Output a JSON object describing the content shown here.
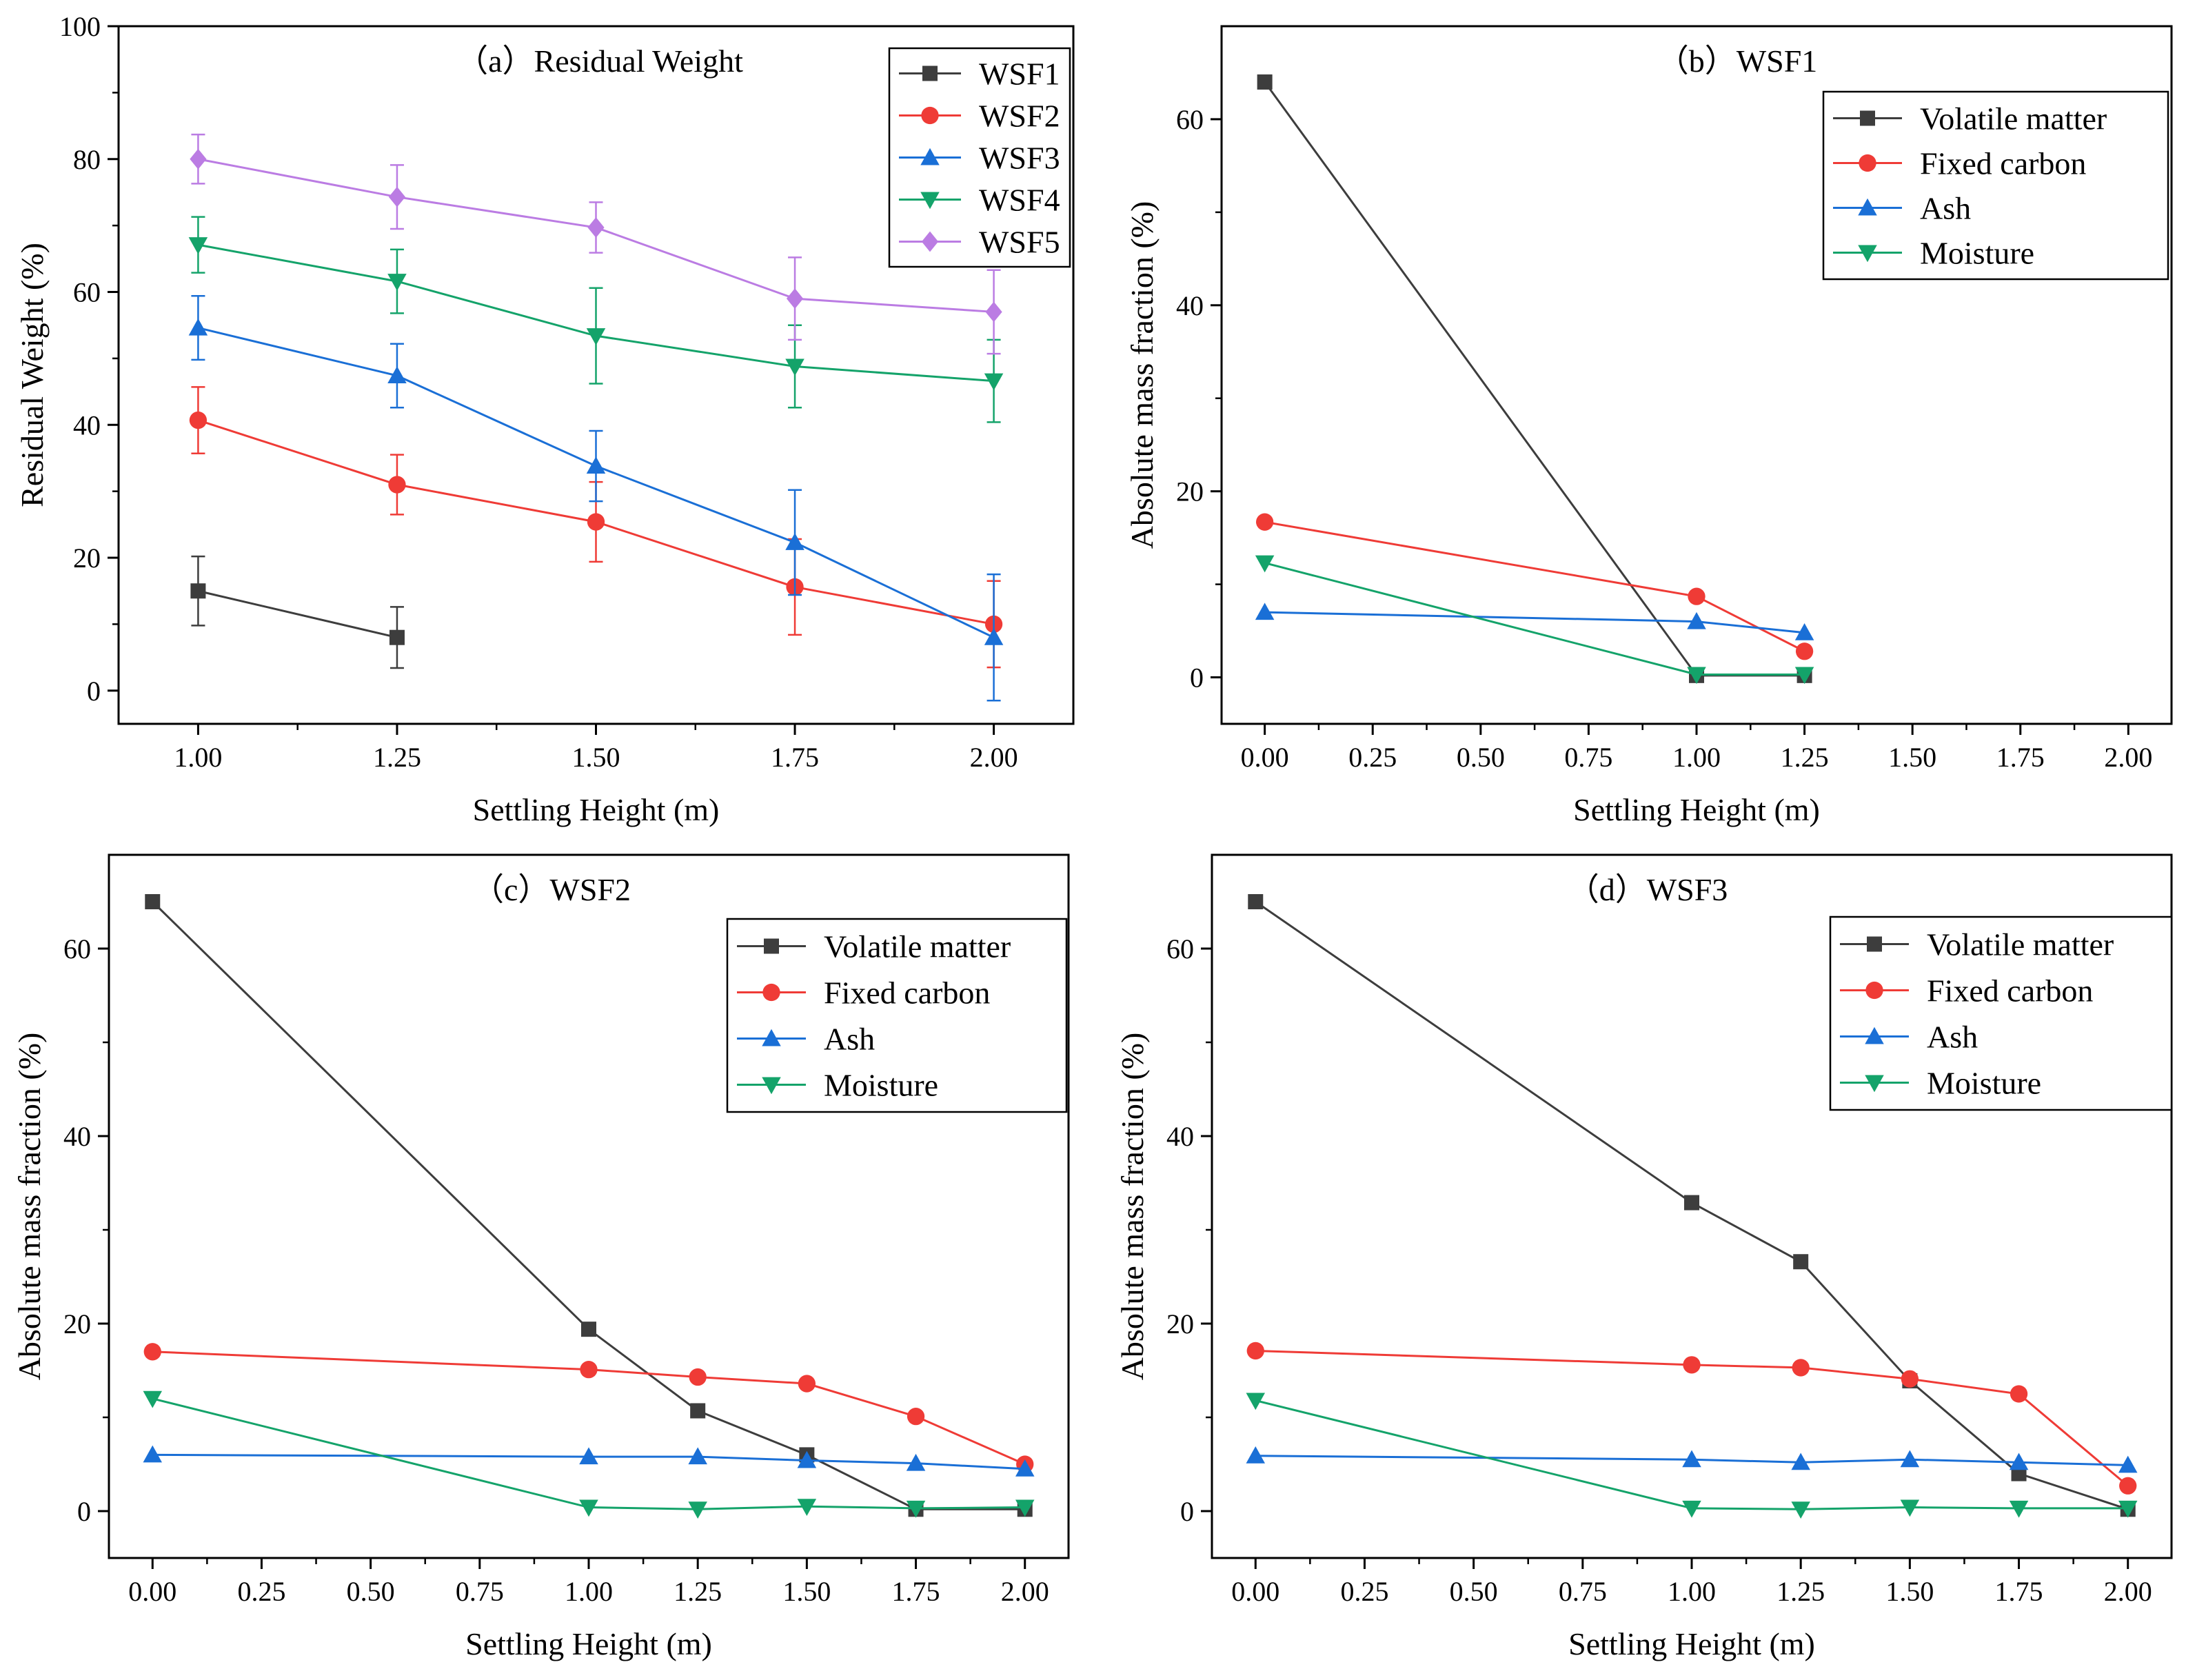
{
  "colors": {
    "black": "#3d3d3d",
    "red": "#ef3b36",
    "blue": "#1a6fd6",
    "green": "#14a36a",
    "purple": "#bb7ce3"
  },
  "chart_data": [
    {
      "type": "line",
      "panel": "a",
      "title": "（a）Residual Weight",
      "xlabel": "Settling Height (m)",
      "ylabel": "Residual Weight (%)",
      "xlim": [
        0.9,
        2.1
      ],
      "ylim": [
        -5,
        100
      ],
      "xticks": [
        1.0,
        1.25,
        1.5,
        1.75,
        2.0
      ],
      "xtick_labels": [
        "1.00",
        "1.25",
        "1.50",
        "1.75",
        "2.00"
      ],
      "yticks": [
        0,
        20,
        40,
        60,
        80,
        100
      ],
      "ytick_labels": [
        "0",
        "20",
        "40",
        "60",
        "80",
        "100"
      ],
      "legend_position": "top-right",
      "series": [
        {
          "name": "WSF1",
          "color": "#3d3d3d",
          "marker": "square",
          "x": [
            1.0,
            1.25
          ],
          "y": [
            15,
            8
          ],
          "err": [
            5.2,
            4.6
          ]
        },
        {
          "name": "WSF2",
          "color": "#ef3b36",
          "marker": "circle",
          "x": [
            1.0,
            1.25,
            1.5,
            1.75,
            2.0
          ],
          "y": [
            40.7,
            31,
            25.4,
            15.6,
            10
          ],
          "err": [
            5,
            4.5,
            6,
            7.2,
            6.5
          ]
        },
        {
          "name": "WSF3",
          "color": "#1a6fd6",
          "marker": "triangle-up",
          "x": [
            1.0,
            1.25,
            1.5,
            1.75,
            2.0
          ],
          "y": [
            54.6,
            47.4,
            33.8,
            22.3,
            8
          ],
          "err": [
            4.8,
            4.8,
            5.3,
            7.9,
            9.5
          ]
        },
        {
          "name": "WSF4",
          "color": "#14a36a",
          "marker": "triangle-down",
          "x": [
            1.0,
            1.25,
            1.5,
            1.75,
            2.0
          ],
          "y": [
            67.1,
            61.6,
            53.4,
            48.8,
            46.6
          ],
          "err": [
            4.2,
            4.8,
            7.2,
            6.2,
            6.2
          ]
        },
        {
          "name": "WSF5",
          "color": "#bb7ce3",
          "marker": "diamond",
          "x": [
            1.0,
            1.25,
            1.5,
            1.75,
            2.0
          ],
          "y": [
            80,
            74.3,
            69.7,
            59,
            57
          ],
          "err": [
            3.7,
            4.8,
            3.8,
            6.2,
            6.3
          ]
        }
      ]
    },
    {
      "type": "line",
      "panel": "b",
      "title": "（b）WSF1",
      "xlabel": "Settling Height (m)",
      "ylabel": "Absolute mass fraction (%)",
      "xlim": [
        -0.1,
        2.1
      ],
      "ylim": [
        -5,
        70
      ],
      "xticks": [
        0,
        0.25,
        0.5,
        0.75,
        1.0,
        1.25,
        1.5,
        1.75,
        2.0
      ],
      "xtick_labels": [
        "0.00",
        "0.25",
        "0.50",
        "0.75",
        "1.00",
        "1.25",
        "1.50",
        "1.75",
        "2.00"
      ],
      "yticks": [
        0,
        20,
        40,
        60
      ],
      "ytick_labels": [
        "0",
        "20",
        "40",
        "60"
      ],
      "legend_position": "top-right",
      "series": [
        {
          "name": "Volatile matter",
          "color": "#3d3d3d",
          "marker": "square",
          "x": [
            0,
            1.0,
            1.25
          ],
          "y": [
            64,
            0.2,
            0.2
          ]
        },
        {
          "name": "Fixed carbon",
          "color": "#ef3b36",
          "marker": "circle",
          "x": [
            0,
            1.0,
            1.25
          ],
          "y": [
            16.7,
            8.7,
            2.8
          ]
        },
        {
          "name": "Ash",
          "color": "#1a6fd6",
          "marker": "triangle-up",
          "x": [
            0,
            1.0,
            1.25
          ],
          "y": [
            7,
            6,
            4.8
          ]
        },
        {
          "name": "Moisture",
          "color": "#14a36a",
          "marker": "triangle-down",
          "x": [
            0,
            1.0,
            1.25
          ],
          "y": [
            12.3,
            0.3,
            0.3
          ]
        }
      ]
    },
    {
      "type": "line",
      "panel": "c",
      "title": "（c）WSF2",
      "xlabel": "Settling Height (m)",
      "ylabel": "Absolute mass fraction (%)",
      "xlim": [
        -0.1,
        2.1
      ],
      "ylim": [
        -5,
        70
      ],
      "xticks": [
        0,
        0.25,
        0.5,
        0.75,
        1.0,
        1.25,
        1.5,
        1.75,
        2.0
      ],
      "xtick_labels": [
        "0.00",
        "0.25",
        "0.50",
        "0.75",
        "1.00",
        "1.25",
        "1.50",
        "1.75",
        "2.00"
      ],
      "yticks": [
        0,
        20,
        40,
        60
      ],
      "ytick_labels": [
        "0",
        "20",
        "40",
        "60"
      ],
      "legend_position": "top-right",
      "series": [
        {
          "name": "Volatile matter",
          "color": "#3d3d3d",
          "marker": "square",
          "x": [
            0,
            1.0,
            1.25,
            1.5,
            1.75,
            2.0
          ],
          "y": [
            65,
            19.4,
            10.7,
            6,
            0.2,
            0.2
          ]
        },
        {
          "name": "Fixed carbon",
          "color": "#ef3b36",
          "marker": "circle",
          "x": [
            0,
            1.0,
            1.25,
            1.5,
            1.75,
            2.0
          ],
          "y": [
            17,
            15.1,
            14.3,
            13.6,
            10.1,
            5
          ]
        },
        {
          "name": "Ash",
          "color": "#1a6fd6",
          "marker": "triangle-up",
          "x": [
            0,
            1.0,
            1.25,
            1.5,
            1.75,
            2.0
          ],
          "y": [
            6,
            5.8,
            5.8,
            5.4,
            5.1,
            4.5
          ]
        },
        {
          "name": "Moisture",
          "color": "#14a36a",
          "marker": "triangle-down",
          "x": [
            0,
            1.0,
            1.25,
            1.5,
            1.75,
            2.0
          ],
          "y": [
            12,
            0.4,
            0.2,
            0.5,
            0.3,
            0.4
          ]
        }
      ]
    },
    {
      "type": "line",
      "panel": "d",
      "title": "（d）WSF3",
      "xlabel": "Settling Height (m)",
      "ylabel": "Absolute mass fraction (%)",
      "xlim": [
        -0.1,
        2.1
      ],
      "ylim": [
        -5,
        70
      ],
      "xticks": [
        0,
        0.25,
        0.5,
        0.75,
        1.0,
        1.25,
        1.5,
        1.75,
        2.0
      ],
      "xtick_labels": [
        "0.00",
        "0.25",
        "0.50",
        "0.75",
        "1.00",
        "1.25",
        "1.50",
        "1.75",
        "2.00"
      ],
      "yticks": [
        0,
        20,
        40,
        60
      ],
      "ytick_labels": [
        "0",
        "20",
        "40",
        "60"
      ],
      "legend_position": "top-right",
      "series": [
        {
          "name": "Volatile matter",
          "color": "#3d3d3d",
          "marker": "square",
          "x": [
            0,
            1.0,
            1.25,
            1.5,
            1.75,
            2.0
          ],
          "y": [
            65,
            32.9,
            26.6,
            13.9,
            4,
            0.2
          ]
        },
        {
          "name": "Fixed carbon",
          "color": "#ef3b36",
          "marker": "circle",
          "x": [
            0,
            1.0,
            1.25,
            1.5,
            1.75,
            2.0
          ],
          "y": [
            17.1,
            15.6,
            15.3,
            14.1,
            12.5,
            2.7
          ]
        },
        {
          "name": "Ash",
          "color": "#1a6fd6",
          "marker": "triangle-up",
          "x": [
            0,
            1.0,
            1.25,
            1.5,
            1.75,
            2.0
          ],
          "y": [
            5.9,
            5.5,
            5.2,
            5.5,
            5.2,
            4.9
          ]
        },
        {
          "name": "Moisture",
          "color": "#14a36a",
          "marker": "triangle-down",
          "x": [
            0,
            1.0,
            1.25,
            1.5,
            1.75,
            2.0
          ],
          "y": [
            11.8,
            0.3,
            0.2,
            0.4,
            0.3,
            0.3
          ]
        }
      ]
    }
  ]
}
